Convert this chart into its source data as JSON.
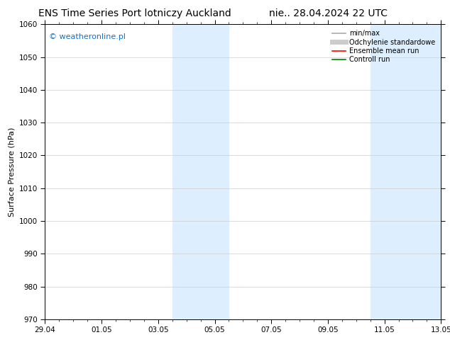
{
  "title": "ENS Time Series Port lotniczy Auckland",
  "title_right": "nie.. 28.04.2024 22 UTC",
  "ylabel": "Surface Pressure (hPa)",
  "ylim": [
    970,
    1060
  ],
  "yticks": [
    970,
    980,
    990,
    1000,
    1010,
    1020,
    1030,
    1040,
    1050,
    1060
  ],
  "xtick_labels": [
    "29.04",
    "01.05",
    "03.05",
    "05.05",
    "07.05",
    "09.05",
    "11.05",
    "13.05"
  ],
  "xtick_positions": [
    0,
    2,
    4,
    6,
    8,
    10,
    12,
    14
  ],
  "xlim": [
    0,
    14
  ],
  "shaded_bands": [
    {
      "x_start": 4.5,
      "x_end": 6.5
    },
    {
      "x_start": 11.5,
      "x_end": 14.0
    }
  ],
  "shaded_color": "#ddeeff",
  "watermark_text": "© weatheronline.pl",
  "watermark_color": "#1a6fbe",
  "legend_entries": [
    {
      "label": "min/max",
      "color": "#aaaaaa",
      "lw": 1.2
    },
    {
      "label": "Odchylenie standardowe",
      "color": "#cccccc",
      "lw": 5
    },
    {
      "label": "Ensemble mean run",
      "color": "red",
      "lw": 1.2
    },
    {
      "label": "Controll run",
      "color": "green",
      "lw": 1.2
    }
  ],
  "background_color": "#ffffff",
  "grid_color": "#cccccc",
  "title_fontsize": 10,
  "ylabel_fontsize": 8,
  "tick_labelsize": 7.5,
  "legend_fontsize": 7,
  "watermark_fontsize": 8
}
